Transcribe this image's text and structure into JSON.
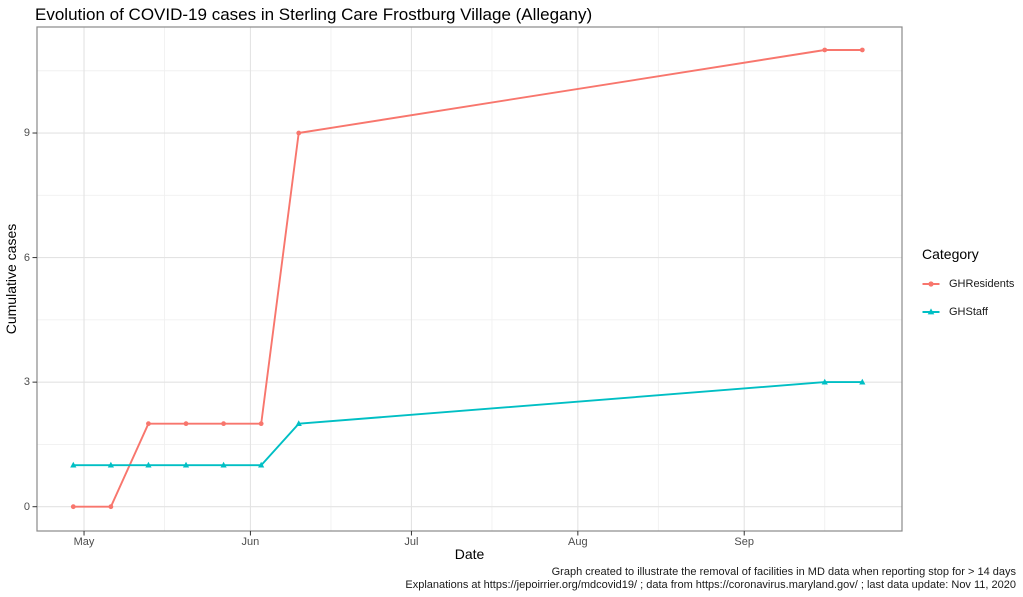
{
  "title": "Evolution of COVID-19 cases in Sterling Care Frostburg Village (Allegany)",
  "axes": {
    "x_label": "Date",
    "y_label": "Cumulative cases"
  },
  "legend": {
    "title": "Category"
  },
  "caption": {
    "line1": "Graph created to illustrate the removal of facilities in MD data when reporting stop for > 14 days",
    "line2": "Explanations at https://jepoirrier.org/mdcovid19/ ; data from https://coronavirus.maryland.gov/ ; last data update: Nov 11, 2020"
  },
  "colors": {
    "residents": "#F8766D",
    "staff": "#00BFC4",
    "grid_major": "#e3e3e3",
    "grid_minor": "#f0f0f0",
    "panel_border": "#8a8a8a",
    "panel_bg": "#ffffff",
    "tick_mark": "#333333",
    "axis_text": "#4d4d4d"
  },
  "chart_data": {
    "type": "line",
    "title": "Evolution of COVID-19 cases in Sterling Care Frostburg Village (Allegany)",
    "xlabel": "Date",
    "ylabel": "Cumulative cases",
    "x": [
      "2020-04-29",
      "2020-05-06",
      "2020-05-13",
      "2020-05-20",
      "2020-05-27",
      "2020-06-03",
      "2020-06-10",
      "2020-09-16",
      "2020-09-23"
    ],
    "series": [
      {
        "name": "GHResidents",
        "color": "#F8766D",
        "marker": "circle",
        "values": [
          0,
          0,
          2,
          2,
          2,
          2,
          9,
          11,
          11
        ]
      },
      {
        "name": "GHStaff",
        "color": "#00BFC4",
        "marker": "triangle",
        "values": [
          1,
          1,
          1,
          1,
          1,
          1,
          2,
          3,
          3
        ]
      }
    ],
    "x_ticks": [
      {
        "label": "May",
        "date": "2020-05-01"
      },
      {
        "label": "Jun",
        "date": "2020-06-01"
      },
      {
        "label": "Jul",
        "date": "2020-07-01"
      },
      {
        "label": "Aug",
        "date": "2020-08-01"
      },
      {
        "label": "Sep",
        "date": "2020-09-01"
      }
    ],
    "x_minor_ticks": [
      "2020-05-16",
      "2020-06-16",
      "2020-07-16",
      "2020-08-16",
      "2020-09-16"
    ],
    "y_ticks": [
      0,
      3,
      6,
      9
    ],
    "y_minor_ticks": [
      1.5,
      4.5,
      7.5,
      10.5
    ],
    "ylim": [
      -0.58,
      11.57
    ],
    "x_range": [
      "2020-04-22",
      "2020-09-30"
    ],
    "grid": true,
    "legend_position": "right"
  }
}
